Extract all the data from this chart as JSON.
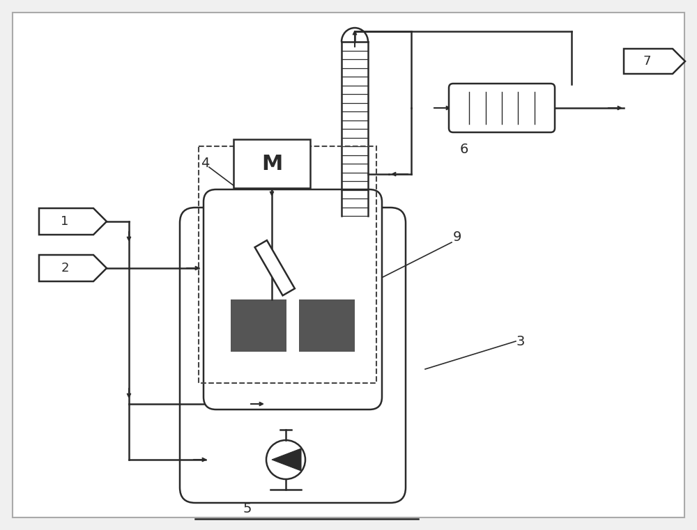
{
  "bg_color": "#f0f0f0",
  "border_color": "#aaaaaa",
  "line_color": "#2a2a2a",
  "dashed_color": "#444444",
  "dark_fill": "#555555",
  "label_fontsize": 14
}
